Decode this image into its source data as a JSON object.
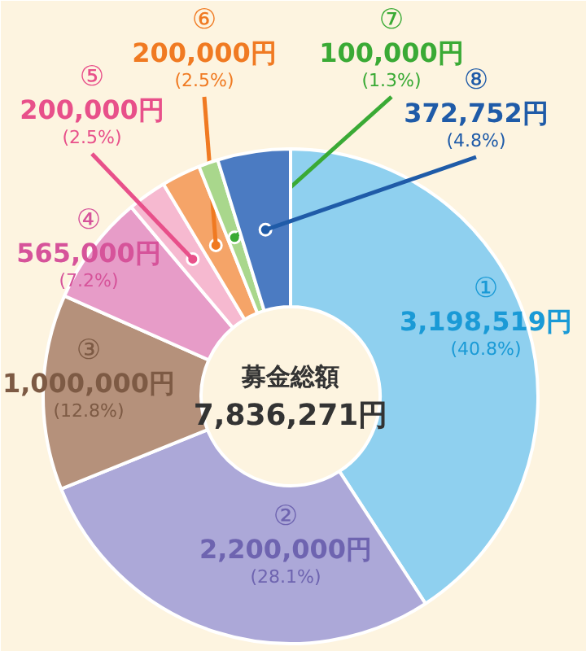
{
  "chart_data": {
    "type": "donut",
    "categories": [
      "①",
      "②",
      "③",
      "④",
      "⑤",
      "⑥",
      "⑦",
      "⑧"
    ],
    "values": [
      3198519,
      2200000,
      1000000,
      565000,
      200000,
      200000,
      100000,
      372752
    ],
    "colors": [
      "#8fd0ef",
      "#aca8d8",
      "#b5917b",
      "#e79cc8",
      "#f6b9d0",
      "#f5a468",
      "#a9d78c",
      "#4b7bc2"
    ],
    "value_labels": [
      "3,198,519円\n(40.8%)",
      "2,200,000円\n(28.1%)",
      "1,000,000円\n(12.8%)",
      "565,000円\n(7.2%)",
      "200,000円\n(2.5%)",
      "200,000円\n(2.5%)",
      "100,000円\n(1.3%)",
      "372,752円\n(4.8%)"
    ],
    "annotations": [
      "募金総額",
      "7,836,271円"
    ]
  }
}
